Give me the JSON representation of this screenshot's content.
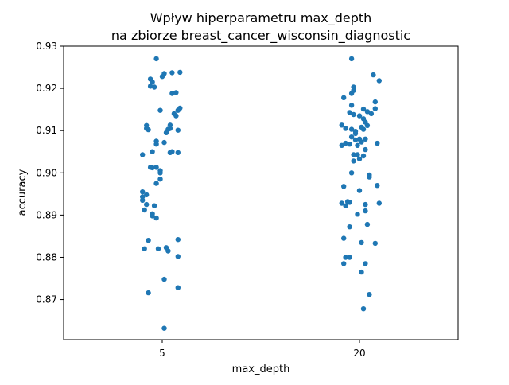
{
  "chart_data": {
    "type": "scatter",
    "title": [
      "Wpływ hiperparametru max_depth",
      "na zbiorze breast_cancer_wisconsin_diagnostic"
    ],
    "xlabel": "max_depth",
    "ylabel": "accuracy",
    "categories": [
      "5",
      "20"
    ],
    "ylim": [
      0.8605,
      0.93
    ],
    "yticks": [
      0.87,
      0.88,
      0.89,
      0.9,
      0.91,
      0.92,
      0.93
    ],
    "ytick_labels": [
      "0.87",
      "0.88",
      "0.89",
      "0.90",
      "0.91",
      "0.92",
      "0.93"
    ],
    "grid": false,
    "point_color": "#1f77b4",
    "series": [
      {
        "category": "5",
        "points": [
          [
            -0.03,
            0.927
          ],
          [
            -0.06,
            0.9222
          ],
          [
            -0.05,
            0.9215
          ],
          [
            -0.06,
            0.9205
          ],
          [
            -0.04,
            0.9203
          ],
          [
            0.0,
            0.9228
          ],
          [
            0.01,
            0.9235
          ],
          [
            0.05,
            0.9237
          ],
          [
            0.09,
            0.9238
          ],
          [
            0.05,
            0.9188
          ],
          [
            0.07,
            0.919
          ],
          [
            -0.01,
            0.9148
          ],
          [
            0.09,
            0.9153
          ],
          [
            0.08,
            0.9148
          ],
          [
            0.06,
            0.914
          ],
          [
            0.07,
            0.9135
          ],
          [
            -0.08,
            0.9112
          ],
          [
            -0.08,
            0.9105
          ],
          [
            -0.07,
            0.9102
          ],
          [
            0.03,
            0.9103
          ],
          [
            0.04,
            0.9113
          ],
          [
            0.04,
            0.9105
          ],
          [
            0.02,
            0.9095
          ],
          [
            0.08,
            0.9101
          ],
          [
            -0.03,
            0.9075
          ],
          [
            -0.03,
            0.9068
          ],
          [
            0.01,
            0.9072
          ],
          [
            0.04,
            0.9048
          ],
          [
            0.05,
            0.905
          ],
          [
            0.08,
            0.9048
          ],
          [
            -0.05,
            0.905
          ],
          [
            -0.1,
            0.9043
          ],
          [
            -0.06,
            0.9013
          ],
          [
            -0.05,
            0.9012
          ],
          [
            -0.03,
            0.9013
          ],
          [
            -0.01,
            0.9005
          ],
          [
            -0.01,
            0.9
          ],
          [
            -0.03,
            0.8975
          ],
          [
            -0.01,
            0.8985
          ],
          [
            -0.1,
            0.8955
          ],
          [
            -0.08,
            0.8948
          ],
          [
            -0.1,
            0.8943
          ],
          [
            -0.1,
            0.8935
          ],
          [
            -0.08,
            0.8925
          ],
          [
            -0.04,
            0.8922
          ],
          [
            -0.09,
            0.8912
          ],
          [
            -0.05,
            0.8903
          ],
          [
            -0.05,
            0.8898
          ],
          [
            -0.03,
            0.8893
          ],
          [
            -0.07,
            0.884
          ],
          [
            0.08,
            0.8842
          ],
          [
            -0.09,
            0.882
          ],
          [
            -0.02,
            0.882
          ],
          [
            0.02,
            0.8823
          ],
          [
            0.03,
            0.8815
          ],
          [
            0.08,
            0.8802
          ],
          [
            0.01,
            0.8748
          ],
          [
            0.08,
            0.8728
          ],
          [
            -0.07,
            0.8716
          ],
          [
            0.01,
            0.8632
          ]
        ]
      },
      {
        "category": "20",
        "points": [
          [
            -0.04,
            0.927
          ],
          [
            0.07,
            0.9232
          ],
          [
            0.1,
            0.9218
          ],
          [
            -0.03,
            0.9203
          ],
          [
            -0.03,
            0.9195
          ],
          [
            -0.04,
            0.9188
          ],
          [
            -0.08,
            0.9178
          ],
          [
            0.08,
            0.9168
          ],
          [
            0.08,
            0.9152
          ],
          [
            -0.04,
            0.916
          ],
          [
            0.02,
            0.9151
          ],
          [
            0.04,
            0.9145
          ],
          [
            0.06,
            0.914
          ],
          [
            -0.05,
            0.9143
          ],
          [
            -0.03,
            0.9138
          ],
          [
            0.0,
            0.9135
          ],
          [
            0.02,
            0.9128
          ],
          [
            0.03,
            0.912
          ],
          [
            -0.09,
            0.9113
          ],
          [
            -0.07,
            0.9105
          ],
          [
            -0.04,
            0.9103
          ],
          [
            -0.02,
            0.9098
          ],
          [
            0.01,
            0.9108
          ],
          [
            0.02,
            0.9103
          ],
          [
            0.04,
            0.9112
          ],
          [
            -0.02,
            0.9093
          ],
          [
            -0.04,
            0.9085
          ],
          [
            0.0,
            0.908
          ],
          [
            0.03,
            0.908
          ],
          [
            -0.07,
            0.907
          ],
          [
            -0.09,
            0.9065
          ],
          [
            -0.05,
            0.9068
          ],
          [
            -0.02,
            0.9078
          ],
          [
            0.01,
            0.9073
          ],
          [
            0.09,
            0.907
          ],
          [
            -0.01,
            0.9065
          ],
          [
            0.03,
            0.9055
          ],
          [
            -0.03,
            0.9043
          ],
          [
            -0.01,
            0.9043
          ],
          [
            0.02,
            0.904
          ],
          [
            0.0,
            0.9033
          ],
          [
            -0.03,
            0.9028
          ],
          [
            -0.04,
            0.9
          ],
          [
            0.05,
            0.8995
          ],
          [
            0.05,
            0.899
          ],
          [
            -0.08,
            0.8968
          ],
          [
            0.09,
            0.897
          ],
          [
            0.0,
            0.8958
          ],
          [
            -0.09,
            0.8928
          ],
          [
            -0.06,
            0.8932
          ],
          [
            -0.07,
            0.8922
          ],
          [
            -0.05,
            0.893
          ],
          [
            0.03,
            0.8925
          ],
          [
            0.1,
            0.8928
          ],
          [
            0.03,
            0.891
          ],
          [
            -0.01,
            0.8902
          ],
          [
            0.04,
            0.8878
          ],
          [
            -0.05,
            0.8872
          ],
          [
            -0.08,
            0.8845
          ],
          [
            0.01,
            0.8835
          ],
          [
            0.08,
            0.8833
          ],
          [
            -0.07,
            0.88
          ],
          [
            -0.05,
            0.88
          ],
          [
            -0.08,
            0.8785
          ],
          [
            0.03,
            0.8785
          ],
          [
            0.01,
            0.8765
          ],
          [
            0.05,
            0.8712
          ],
          [
            0.02,
            0.8678
          ]
        ]
      }
    ]
  }
}
